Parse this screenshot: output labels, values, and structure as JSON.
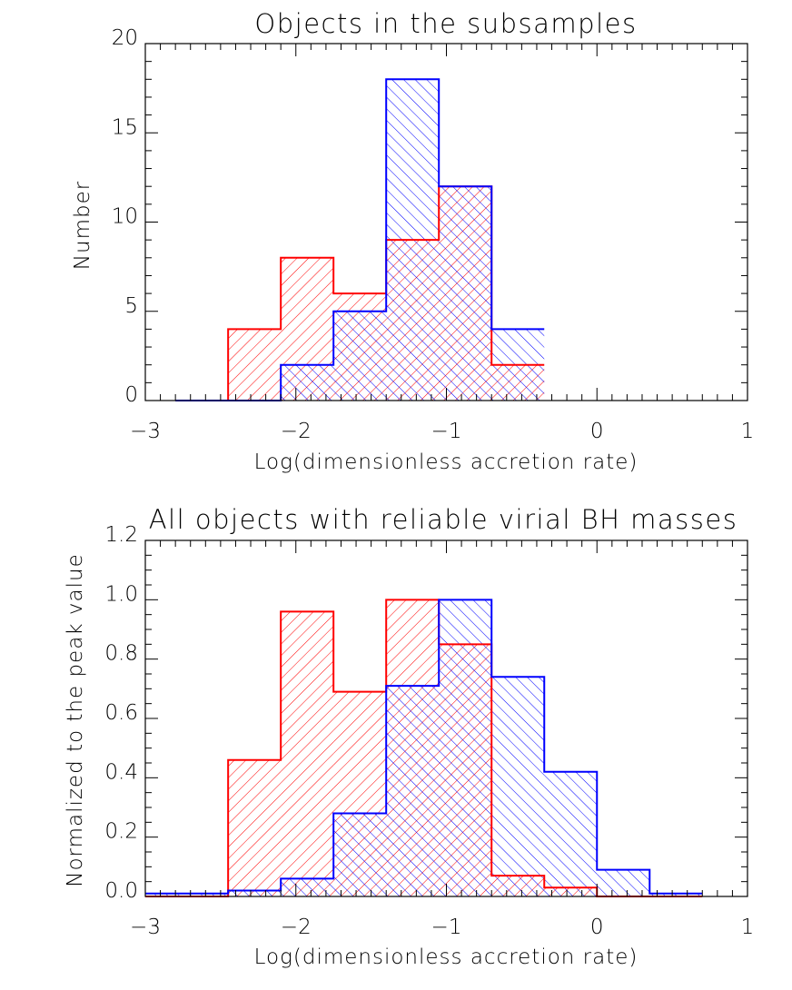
{
  "chart_data": [
    {
      "type": "bar",
      "title": "Objects in the subsamples",
      "xlabel": "Log(dimensionless accretion rate)",
      "ylabel": "Number",
      "xlim": [
        -3,
        1
      ],
      "ylim": [
        0,
        20
      ],
      "xticks": [
        "−3",
        "−2",
        "−1",
        "0",
        "1"
      ],
      "yticks": [
        "0",
        "5",
        "10",
        "15",
        "20"
      ],
      "bin_edges": [
        -2.8,
        -2.45,
        -2.1,
        -1.75,
        -1.4,
        -1.05,
        -0.7,
        -0.35
      ],
      "series": [
        {
          "color": "#ff0000",
          "hatch": "forward",
          "values": [
            0,
            4,
            8,
            6,
            9,
            12,
            2
          ]
        },
        {
          "color": "#0000ff",
          "hatch": "backward",
          "values": [
            0,
            0,
            2,
            5,
            18,
            12,
            4
          ]
        }
      ]
    },
    {
      "type": "bar",
      "title": "All objects with reliable virial BH masses",
      "xlabel": "Log(dimensionless accretion rate)",
      "ylabel": "Normalized to the peak value",
      "xlim": [
        -3,
        1
      ],
      "ylim": [
        0,
        1.2
      ],
      "xticks": [
        "−3",
        "−2",
        "−1",
        "0",
        "1"
      ],
      "yticks": [
        "0.0",
        "0.2",
        "0.4",
        "0.6",
        "0.8",
        "1.0",
        "1.2"
      ],
      "bin_edges": [
        -3.0,
        -2.8,
        -2.45,
        -2.1,
        -1.75,
        -1.4,
        -1.05,
        -0.7,
        -0.35,
        0,
        0.35,
        0.7
      ],
      "series": [
        {
          "color": "#ff0000",
          "hatch": "forward",
          "values": [
            0,
            0,
            0.46,
            0.96,
            0.69,
            1.0,
            0.85,
            0.07,
            0.03,
            0,
            0
          ]
        },
        {
          "color": "#0000ff",
          "hatch": "backward",
          "values": [
            0.01,
            0.01,
            0.02,
            0.06,
            0.28,
            0.71,
            1.0,
            0.74,
            0.42,
            0.09,
            0.01
          ]
        }
      ]
    }
  ]
}
